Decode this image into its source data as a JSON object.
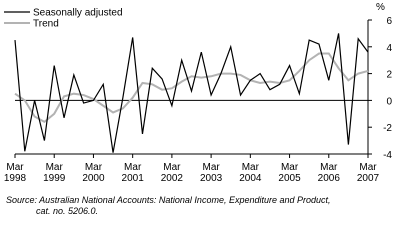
{
  "chart_data": {
    "type": "line",
    "y_axis_label": "%",
    "categories": [
      "Mar 1998",
      null,
      null,
      null,
      "Mar 1999",
      null,
      null,
      null,
      "Mar 2000",
      null,
      null,
      null,
      "Mar 2001",
      null,
      null,
      null,
      "Mar 2002",
      null,
      null,
      null,
      "Mar 2003",
      null,
      null,
      null,
      "Mar 2004",
      null,
      null,
      null,
      "Mar 2005",
      null,
      null,
      null,
      "Mar 2006",
      null,
      null,
      null,
      "Mar 2007"
    ],
    "series": [
      {
        "name": "Seasonally adjusted",
        "color": "#000000",
        "values": [
          4.5,
          -3.8,
          0,
          -3.0,
          2.6,
          -1.3,
          1.9,
          -0.2,
          0,
          1.2,
          -3.9,
          0.2,
          4.7,
          -2.5,
          2.4,
          1.6,
          -0.4,
          3.0,
          0.7,
          3.6,
          0.4,
          2.0,
          4.0,
          0.4,
          1.5,
          2.0,
          0.8,
          1.2,
          2.6,
          0.5,
          4.5,
          4.2,
          1.5,
          5.0,
          -3.3,
          4.6,
          3.6
        ]
      },
      {
        "name": "Trend",
        "color": "#b3b3b3",
        "values": [
          0.5,
          0.0,
          -1.2,
          -1.6,
          -1.0,
          0.3,
          0.5,
          0.4,
          0.1,
          -0.4,
          -0.9,
          -0.6,
          0.2,
          1.3,
          1.2,
          0.8,
          0.9,
          1.4,
          1.8,
          1.7,
          1.8,
          2.0,
          2.0,
          1.9,
          1.5,
          1.3,
          1.4,
          1.3,
          1.5,
          2.2,
          3.0,
          3.5,
          3.5,
          2.4,
          1.5,
          2.0,
          2.2
        ]
      }
    ],
    "ylim": [
      -4,
      6
    ],
    "yticks": [
      -4,
      -2,
      0,
      2,
      4,
      6
    ],
    "legend": "top-left",
    "source": [
      "Source: Australian National Accounts: National Income, Expenditure and Product,",
      "cat. no. 5206.0."
    ]
  }
}
